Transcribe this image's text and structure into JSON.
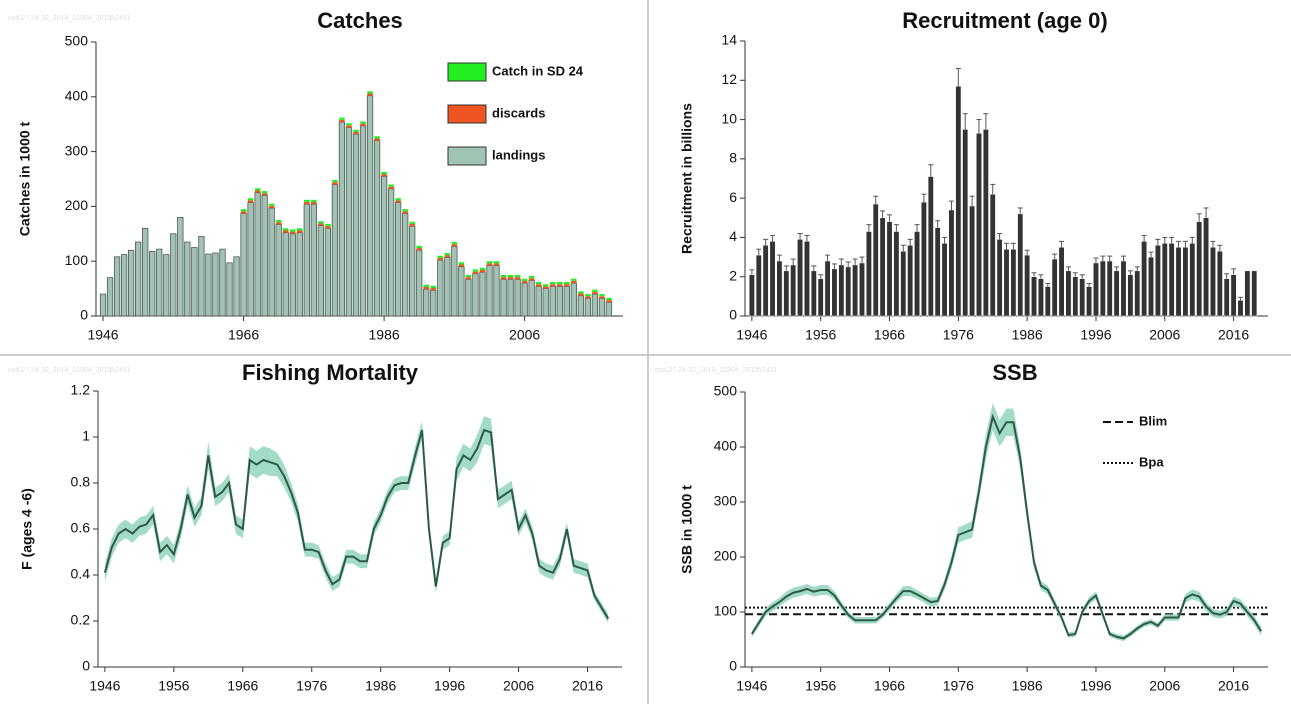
{
  "chart_data": [
    {
      "type": "bar",
      "title": "Catches",
      "y_label": "Catches in 1000 t",
      "watermark": "cod.27.24-32_2019_12904_201952411",
      "stacked": true,
      "legend": "upper right",
      "x": [
        1946,
        1947,
        1948,
        1949,
        1950,
        1951,
        1952,
        1953,
        1954,
        1955,
        1956,
        1957,
        1958,
        1959,
        1960,
        1961,
        1962,
        1963,
        1964,
        1965,
        1966,
        1967,
        1968,
        1969,
        1970,
        1971,
        1972,
        1973,
        1974,
        1975,
        1976,
        1977,
        1978,
        1979,
        1980,
        1981,
        1982,
        1983,
        1984,
        1985,
        1986,
        1987,
        1988,
        1989,
        1990,
        1991,
        1992,
        1993,
        1994,
        1995,
        1996,
        1997,
        1998,
        1999,
        2000,
        2001,
        2002,
        2003,
        2004,
        2005,
        2006,
        2007,
        2008,
        2009,
        2010,
        2011,
        2012,
        2013,
        2014,
        2015,
        2016,
        2017,
        2018
      ],
      "series": [
        {
          "name": "landings",
          "color": "#9fc4b4",
          "values": [
            40,
            70,
            108,
            112,
            120,
            135,
            160,
            118,
            122,
            112,
            150,
            180,
            135,
            125,
            145,
            113,
            115,
            122,
            97,
            108,
            187,
            207,
            225,
            220,
            197,
            167,
            152,
            150,
            152,
            204,
            204,
            165,
            160,
            240,
            354,
            344,
            332,
            347,
            402,
            320,
            255,
            232,
            207,
            187,
            164,
            120,
            49,
            47,
            102,
            107,
            127,
            90,
            67,
            77,
            80,
            92,
            92,
            67,
            67,
            67,
            60,
            65,
            54,
            50,
            54,
            54,
            54,
            60,
            37,
            32,
            40,
            32,
            25
          ]
        },
        {
          "name": "discards",
          "color": "#ee5522",
          "values": [
            0,
            0,
            0,
            0,
            0,
            0,
            0,
            0,
            0,
            0,
            0,
            0,
            0,
            0,
            0,
            0,
            0,
            0,
            0,
            0,
            4,
            4,
            4,
            4,
            4,
            4,
            4,
            4,
            4,
            4,
            4,
            4,
            4,
            4,
            4,
            4,
            4,
            4,
            4,
            4,
            4,
            4,
            4,
            4,
            4,
            4,
            4,
            4,
            4,
            4,
            4,
            4,
            4,
            4,
            4,
            4,
            4,
            4,
            4,
            4,
            4,
            4,
            4,
            4,
            4,
            4,
            4,
            4,
            4,
            4,
            4,
            4,
            4
          ]
        },
        {
          "name": "Catch in SD 24",
          "color": "#22ee22",
          "values": [
            0,
            0,
            0,
            0,
            0,
            0,
            0,
            0,
            0,
            0,
            0,
            0,
            0,
            0,
            0,
            0,
            0,
            0,
            0,
            0,
            4,
            4,
            4,
            4,
            4,
            4,
            4,
            4,
            4,
            4,
            4,
            4,
            4,
            4,
            4,
            4,
            4,
            4,
            4,
            4,
            4,
            4,
            4,
            4,
            4,
            4,
            4,
            4,
            4,
            4,
            4,
            4,
            4,
            4,
            4,
            4,
            4,
            4,
            4,
            4,
            4,
            4,
            4,
            4,
            4,
            4,
            4,
            4,
            4,
            4,
            4,
            4,
            4
          ]
        }
      ],
      "xlim": [
        1945,
        2020
      ],
      "xticks": [
        1946,
        1966,
        1986,
        2006
      ],
      "ylim": [
        0,
        500
      ],
      "yticks": [
        0,
        100,
        200,
        300,
        400,
        500
      ]
    },
    {
      "type": "bar",
      "title": "Recruitment (age 0)",
      "y_label": "Recruitment in billions",
      "x": [
        1946,
        1947,
        1948,
        1949,
        1950,
        1951,
        1952,
        1953,
        1954,
        1955,
        1956,
        1957,
        1958,
        1959,
        1960,
        1961,
        1962,
        1963,
        1964,
        1965,
        1966,
        1967,
        1968,
        1969,
        1970,
        1971,
        1972,
        1973,
        1974,
        1975,
        1976,
        1977,
        1978,
        1979,
        1980,
        1981,
        1982,
        1983,
        1984,
        1985,
        1986,
        1987,
        1988,
        1989,
        1990,
        1991,
        1992,
        1993,
        1994,
        1995,
        1996,
        1997,
        1998,
        1999,
        2000,
        2001,
        2002,
        2003,
        2004,
        2005,
        2006,
        2007,
        2008,
        2009,
        2010,
        2011,
        2012,
        2013,
        2014,
        2015,
        2016,
        2017,
        2018,
        2019
      ],
      "series": [
        {
          "color": "#333333",
          "values": [
            2.1,
            3.1,
            3.6,
            3.8,
            2.8,
            2.3,
            2.6,
            3.9,
            3.8,
            2.3,
            1.9,
            2.8,
            2.4,
            2.6,
            2.5,
            2.6,
            2.7,
            4.3,
            5.7,
            5.0,
            4.8,
            4.3,
            3.3,
            3.6,
            4.3,
            5.8,
            7.1,
            4.5,
            3.7,
            5.4,
            11.7,
            9.5,
            5.6,
            9.3,
            9.5,
            6.2,
            3.9,
            3.4,
            3.4,
            5.2,
            3.1,
            2.0,
            1.9,
            1.5,
            2.9,
            3.5,
            2.3,
            2.0,
            1.9,
            1.5,
            2.7,
            2.8,
            2.8,
            2.3,
            2.8,
            2.1,
            2.3,
            3.8,
            3.0,
            3.6,
            3.7,
            3.7,
            3.5,
            3.5,
            3.7,
            4.8,
            5.0,
            3.5,
            3.3,
            1.9,
            2.1,
            0.8,
            2.3,
            2.3
          ],
          "errors": [
            0.25,
            0.3,
            0.3,
            0.3,
            0.3,
            0.25,
            0.3,
            0.3,
            0.3,
            0.25,
            0.2,
            0.3,
            0.25,
            0.3,
            0.25,
            0.3,
            0.3,
            0.35,
            0.4,
            0.35,
            0.35,
            0.35,
            0.3,
            0.3,
            0.35,
            0.4,
            0.6,
            0.35,
            0.3,
            0.45,
            0.9,
            0.8,
            0.5,
            0.7,
            0.8,
            0.5,
            0.3,
            0.3,
            0.3,
            0.3,
            0.25,
            0.2,
            0.2,
            0.15,
            0.25,
            0.3,
            0.2,
            0.2,
            0.2,
            0.15,
            0.25,
            0.25,
            0.25,
            0.2,
            0.25,
            0.2,
            0.2,
            0.3,
            0.25,
            0.3,
            0.3,
            0.3,
            0.3,
            0.3,
            0.3,
            0.4,
            0.5,
            0.3,
            0.3,
            0.25,
            0.3,
            0.15,
            null,
            null
          ]
        }
      ],
      "xlim": [
        1945,
        2021
      ],
      "xticks": [
        1946,
        1956,
        1966,
        1976,
        1986,
        1996,
        2006,
        2016
      ],
      "ylim": [
        0,
        14
      ],
      "yticks": [
        0,
        2,
        4,
        6,
        8,
        10,
        12,
        14
      ]
    },
    {
      "type": "line",
      "title": "Fishing Mortality",
      "y_label": "F (ages 4 -6)",
      "watermark": "cod.27.24-32_2019_12904_201952411",
      "x": [
        1946,
        1947,
        1948,
        1949,
        1950,
        1951,
        1952,
        1953,
        1954,
        1955,
        1956,
        1957,
        1958,
        1959,
        1960,
        1961,
        1962,
        1963,
        1964,
        1965,
        1966,
        1967,
        1968,
        1969,
        1970,
        1971,
        1972,
        1973,
        1974,
        1975,
        1976,
        1977,
        1978,
        1979,
        1980,
        1981,
        1982,
        1983,
        1984,
        1985,
        1986,
        1987,
        1988,
        1989,
        1990,
        1991,
        1992,
        1993,
        1994,
        1995,
        1996,
        1997,
        1998,
        1999,
        2000,
        2001,
        2002,
        2003,
        2004,
        2005,
        2006,
        2007,
        2008,
        2009,
        2010,
        2011,
        2012,
        2013,
        2014,
        2015,
        2016,
        2017,
        2018,
        2019
      ],
      "series": [
        {
          "color": "#2d5a45",
          "band_color": "#93d6bc",
          "values": [
            0.41,
            0.52,
            0.58,
            0.6,
            0.58,
            0.61,
            0.62,
            0.66,
            0.5,
            0.53,
            0.49,
            0.6,
            0.75,
            0.65,
            0.7,
            0.92,
            0.74,
            0.76,
            0.8,
            0.62,
            0.6,
            0.9,
            0.88,
            0.9,
            0.89,
            0.88,
            0.83,
            0.76,
            0.67,
            0.51,
            0.51,
            0.5,
            0.42,
            0.36,
            0.38,
            0.48,
            0.48,
            0.46,
            0.46,
            0.6,
            0.66,
            0.74,
            0.79,
            0.8,
            0.8,
            0.92,
            1.03,
            0.6,
            0.35,
            0.54,
            0.56,
            0.86,
            0.92,
            0.9,
            0.95,
            1.03,
            1.02,
            0.73,
            0.75,
            0.77,
            0.6,
            0.66,
            0.58,
            0.44,
            0.42,
            0.41,
            0.47,
            0.6,
            0.44,
            0.43,
            0.42,
            0.31,
            0.26,
            0.21
          ],
          "errors": [
            0.04,
            0.04,
            0.04,
            0.04,
            0.04,
            0.04,
            0.04,
            0.04,
            0.04,
            0.04,
            0.04,
            0.04,
            0.04,
            0.04,
            0.04,
            0.06,
            0.04,
            0.04,
            0.04,
            0.04,
            0.04,
            0.06,
            0.06,
            0.06,
            0.06,
            0.05,
            0.05,
            0.04,
            0.04,
            0.03,
            0.03,
            0.03,
            0.03,
            0.03,
            0.03,
            0.03,
            0.03,
            0.03,
            0.03,
            0.03,
            0.03,
            0.03,
            0.03,
            0.03,
            0.03,
            0.04,
            0.04,
            0.03,
            0.03,
            0.03,
            0.03,
            0.05,
            0.05,
            0.05,
            0.06,
            0.06,
            0.06,
            0.04,
            0.04,
            0.04,
            0.03,
            0.03,
            0.03,
            0.03,
            0.03,
            0.03,
            0.03,
            0.03,
            0.03,
            0.03,
            0.03,
            0.02,
            0.02,
            0.02
          ]
        }
      ],
      "xlim": [
        1945,
        2021
      ],
      "xticks": [
        1946,
        1956,
        1966,
        1976,
        1986,
        1996,
        2006,
        2016
      ],
      "ylim": [
        0,
        1.2
      ],
      "yticks": [
        0,
        0.2,
        0.4,
        0.6,
        0.8,
        1,
        1.2
      ]
    },
    {
      "type": "line",
      "title": "SSB",
      "y_label": "SSB in 1000 t",
      "watermark": "cod.27.24-32_2019_12904_201952411",
      "legend": "upper right",
      "x": [
        1946,
        1947,
        1948,
        1949,
        1950,
        1951,
        1952,
        1953,
        1954,
        1955,
        1956,
        1957,
        1958,
        1959,
        1960,
        1961,
        1962,
        1963,
        1964,
        1965,
        1966,
        1967,
        1968,
        1969,
        1970,
        1971,
        1972,
        1973,
        1974,
        1975,
        1976,
        1977,
        1978,
        1979,
        1980,
        1981,
        1982,
        1983,
        1984,
        1985,
        1986,
        1987,
        1988,
        1989,
        1990,
        1991,
        1992,
        1993,
        1994,
        1995,
        1996,
        1997,
        1998,
        1999,
        2000,
        2001,
        2002,
        2003,
        2004,
        2005,
        2006,
        2007,
        2008,
        2009,
        2010,
        2011,
        2012,
        2013,
        2014,
        2015,
        2016,
        2017,
        2018,
        2019,
        2020
      ],
      "series": [
        {
          "color": "#2d5a45",
          "band_color": "#93d6bc",
          "values": [
            60,
            80,
            100,
            110,
            118,
            128,
            135,
            138,
            142,
            137,
            140,
            140,
            130,
            112,
            95,
            85,
            85,
            85,
            85,
            95,
            110,
            125,
            138,
            138,
            132,
            125,
            118,
            120,
            150,
            190,
            240,
            245,
            250,
            320,
            400,
            455,
            425,
            445,
            445,
            380,
            280,
            190,
            148,
            140,
            115,
            90,
            58,
            60,
            100,
            120,
            130,
            95,
            60,
            55,
            52,
            60,
            70,
            78,
            82,
            75,
            90,
            90,
            90,
            125,
            132,
            128,
            110,
            98,
            95,
            100,
            120,
            115,
            100,
            85,
            65
          ],
          "errors": [
            6,
            6,
            7,
            8,
            8,
            9,
            9,
            9,
            9,
            9,
            9,
            9,
            8,
            7,
            6,
            6,
            6,
            6,
            6,
            6,
            7,
            8,
            9,
            9,
            8,
            8,
            8,
            8,
            10,
            12,
            14,
            14,
            15,
            18,
            22,
            25,
            24,
            25,
            25,
            20,
            15,
            10,
            8,
            8,
            7,
            6,
            5,
            5,
            6,
            7,
            7,
            6,
            5,
            5,
            5,
            5,
            5,
            5,
            5,
            5,
            6,
            6,
            6,
            8,
            9,
            9,
            8,
            7,
            7,
            7,
            8,
            8,
            8,
            8,
            8
          ]
        }
      ],
      "reference_lines": [
        {
          "name": "Blim",
          "value": 96,
          "dash": "dashed"
        },
        {
          "name": "Bpa",
          "value": 108,
          "dash": "dotted"
        }
      ],
      "xlim": [
        1945,
        2021
      ],
      "xticks": [
        1946,
        1956,
        1966,
        1976,
        1986,
        1996,
        2006,
        2016
      ],
      "ylim": [
        0,
        500
      ],
      "yticks": [
        0,
        100,
        200,
        300,
        400,
        500
      ]
    }
  ]
}
